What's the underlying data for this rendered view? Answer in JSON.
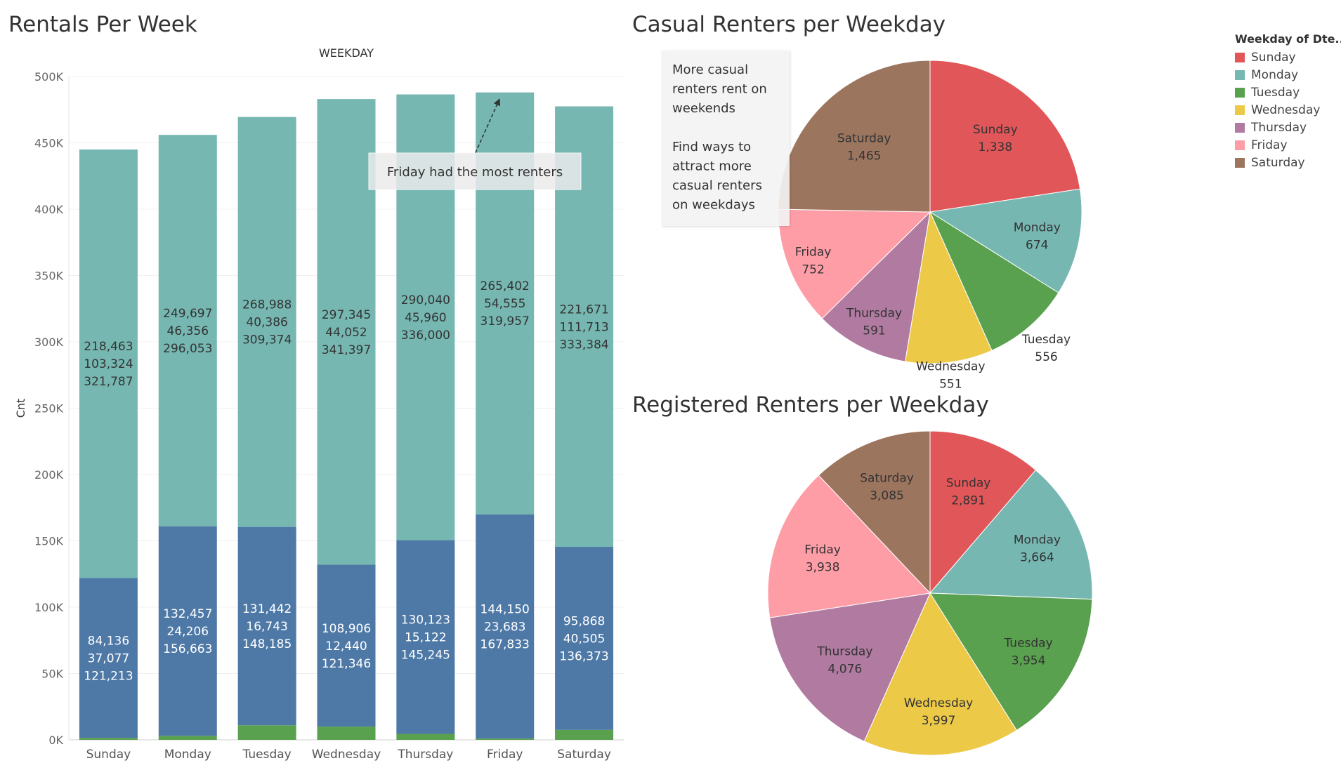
{
  "legend": {
    "title": "Weekday of Dte..",
    "items": [
      {
        "label": "Sunday",
        "color": "#e15759"
      },
      {
        "label": "Monday",
        "color": "#76b7b2"
      },
      {
        "label": "Tuesday",
        "color": "#59a14f"
      },
      {
        "label": "Wednesday",
        "color": "#edc948"
      },
      {
        "label": "Thursday",
        "color": "#b07aa1"
      },
      {
        "label": "Friday",
        "color": "#ff9da7"
      },
      {
        "label": "Saturday",
        "color": "#9c755f"
      }
    ]
  },
  "chart_data": [
    {
      "type": "bar",
      "stacked": true,
      "title": "Rentals Per Week",
      "header": "WEEKDAY",
      "ylabel": "Cnt",
      "ylim": [
        0,
        500000
      ],
      "yticks": [
        0,
        50000,
        100000,
        150000,
        200000,
        250000,
        300000,
        350000,
        400000,
        450000,
        500000
      ],
      "ytick_labels": [
        "0K",
        "50K",
        "100K",
        "150K",
        "200K",
        "250K",
        "300K",
        "350K",
        "400K",
        "450K",
        "500K"
      ],
      "grid": true,
      "categories": [
        "Sunday",
        "Monday",
        "Tuesday",
        "Wednesday",
        "Thursday",
        "Friday",
        "Saturday"
      ],
      "series": [
        {
          "color": "#59a14f",
          "values": [
            1500,
            3000,
            11000,
            10000,
            4500,
            1000,
            7500
          ]
        },
        {
          "color": "#4e79a7",
          "values": [
            120500,
            158000,
            149500,
            122000,
            146000,
            169000,
            138000
          ]
        },
        {
          "color": "#76b7b2",
          "values": [
            323000,
            295000,
            309000,
            351000,
            336000,
            318000,
            332000
          ]
        }
      ],
      "segment_labels": [
        {
          "lower": [
            "84,136",
            "37,077",
            "121,213"
          ],
          "upper": [
            "218,463",
            "103,324",
            "321,787"
          ]
        },
        {
          "lower": [
            "132,457",
            "24,206",
            "156,663"
          ],
          "upper": [
            "249,697",
            "46,356",
            "296,053"
          ]
        },
        {
          "lower": [
            "131,442",
            "16,743",
            "148,185"
          ],
          "upper": [
            "268,988",
            "40,386",
            "309,374"
          ]
        },
        {
          "lower": [
            "108,906",
            "12,440",
            "121,346"
          ],
          "upper": [
            "297,345",
            "44,052",
            "341,397"
          ]
        },
        {
          "lower": [
            "130,123",
            "15,122",
            "145,245"
          ],
          "upper": [
            "290,040",
            "45,960",
            "336,000"
          ]
        },
        {
          "lower": [
            "144,150",
            "23,683",
            "167,833"
          ],
          "upper": [
            "265,402",
            "54,555",
            "319,957"
          ]
        },
        {
          "lower": [
            "95,868",
            "40,505",
            "136,373"
          ],
          "upper": [
            "221,671",
            "111,713",
            "333,384"
          ]
        }
      ],
      "annotation": {
        "text": "Friday  had the most renters",
        "target": "Friday"
      }
    },
    {
      "type": "pie",
      "title": "Casual Renters per Weekday",
      "slices": [
        {
          "label": "Sunday",
          "value": 1338,
          "value_label": "1,338",
          "color": "#e15759"
        },
        {
          "label": "Monday",
          "value": 674,
          "value_label": "674",
          "color": "#76b7b2"
        },
        {
          "label": "Tuesday",
          "value": 556,
          "value_label": "556",
          "color": "#59a14f"
        },
        {
          "label": "Wednesday",
          "value": 551,
          "value_label": "551",
          "color": "#edc948"
        },
        {
          "label": "Thursday",
          "value": 591,
          "value_label": "591",
          "color": "#b07aa1"
        },
        {
          "label": "Friday",
          "value": 752,
          "value_label": "752",
          "color": "#ff9da7"
        },
        {
          "label": "Saturday",
          "value": 1465,
          "value_label": "1,465",
          "color": "#9c755f"
        }
      ],
      "annotation": [
        "More casual",
        "renters rent on",
        "weekends",
        "",
        "Find ways to",
        "attract more",
        "casual renters",
        "on weekdays"
      ]
    },
    {
      "type": "pie",
      "title": "Registered Renters per Weekday",
      "slices": [
        {
          "label": "Sunday",
          "value": 2891,
          "value_label": "2,891",
          "color": "#e15759"
        },
        {
          "label": "Monday",
          "value": 3664,
          "value_label": "3,664",
          "color": "#76b7b2"
        },
        {
          "label": "Tuesday",
          "value": 3954,
          "value_label": "3,954",
          "color": "#59a14f"
        },
        {
          "label": "Wednesday",
          "value": 3997,
          "value_label": "3,997",
          "color": "#edc948"
        },
        {
          "label": "Thursday",
          "value": 4076,
          "value_label": "4,076",
          "color": "#b07aa1"
        },
        {
          "label": "Friday",
          "value": 3938,
          "value_label": "3,938",
          "color": "#ff9da7"
        },
        {
          "label": "Saturday",
          "value": 3085,
          "value_label": "3,085",
          "color": "#9c755f"
        }
      ]
    }
  ]
}
